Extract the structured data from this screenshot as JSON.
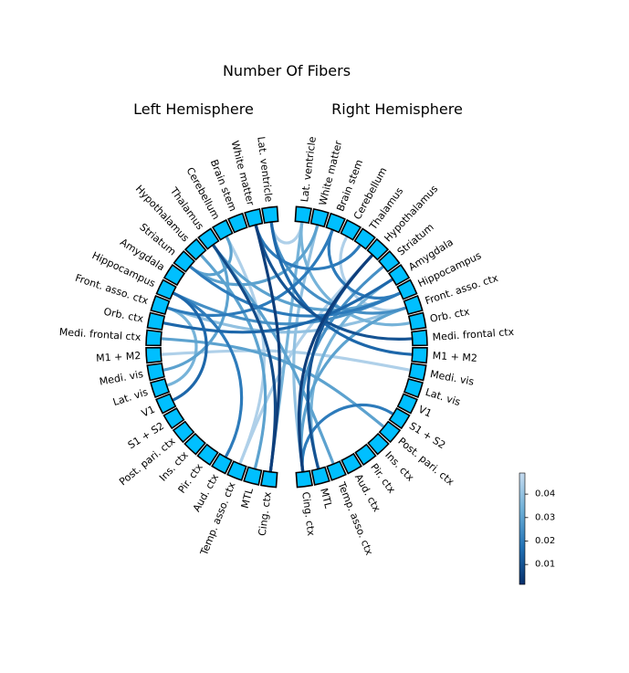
{
  "title": "Number Of Fibers",
  "left_title": "Left Hemisphere",
  "right_title": "Right Hemisphere",
  "node_color": "#00bfff",
  "left_nodes": [
    "Lat. ventricle",
    "White matter",
    "Brain stem",
    "Cerebellum",
    "Thalamus",
    "Hypothalamus",
    "Striatum",
    "Amygdala",
    "Hippocampus",
    "Front. asso. ctx",
    "Orb. ctx",
    "Medi. frontal ctx",
    "M1 + M2",
    "Medi. vis",
    "Lat. vis",
    "V1",
    "S1 + S2",
    "Post. pari. ctx",
    "Ins. ctx",
    "Pir. ctx",
    "Aud. ctx",
    "Temp. asso. ctx",
    "MTL",
    "Cing. ctx"
  ],
  "right_nodes": [
    "Lat. ventricle",
    "White matter",
    "Brain stem",
    "Cerebellum",
    "Thalamus",
    "Hypothalamus",
    "Striatum",
    "Amygdala",
    "Hippocampus",
    "Front. asso. ctx",
    "Orb. ctx",
    "Medi. frontal ctx",
    "M1 + M2",
    "Medi. vis",
    "Lat. vis",
    "V1",
    "S1 + S2",
    "Post. pari. ctx",
    "Ins. ctx",
    "Pir. ctx",
    "Aud. ctx",
    "Temp. asso. ctx",
    "MTL",
    "Cing. ctx"
  ],
  "colorbar": {
    "ticks": [
      "0.01",
      "0.02",
      "0.03",
      "0.04"
    ],
    "range": [
      0.0015,
      0.049
    ],
    "colors": [
      "#08306b",
      "#2171b5",
      "#6baed6",
      "#c6dbef"
    ]
  },
  "connections": [
    {
      "from": "L:Lat. ventricle",
      "to": "R:Front. asso. ctx",
      "value": 0.025
    },
    {
      "from": "L:Lat. ventricle",
      "to": "R:M1 + M2",
      "value": 0.015
    },
    {
      "from": "L:Lat. ventricle",
      "to": "R:Lat. ventricle",
      "value": 0.045
    },
    {
      "from": "L:White matter",
      "to": "R:Medi. frontal ctx",
      "value": 0.01
    },
    {
      "from": "L:White matter",
      "to": "L:Cing. ctx",
      "value": 0.005
    },
    {
      "from": "L:White matter",
      "to": "R:Thalamus",
      "value": 0.02
    },
    {
      "from": "L:Cerebellum",
      "to": "L:Temp. asso. ctx",
      "value": 0.045
    },
    {
      "from": "L:Cerebellum",
      "to": "L:Striatum",
      "value": 0.03
    },
    {
      "from": "L:Thalamus",
      "to": "L:Cing. ctx",
      "value": 0.008
    },
    {
      "from": "L:Thalamus",
      "to": "R:Temp. asso. ctx",
      "value": 0.03
    },
    {
      "from": "L:Thalamus",
      "to": "R:Hippocampus",
      "value": 0.03
    },
    {
      "from": "L:Hypothalamus",
      "to": "L:MTL",
      "value": 0.03
    },
    {
      "from": "L:Striatum",
      "to": "R:Hippocampus",
      "value": 0.02
    },
    {
      "from": "L:Striatum",
      "to": "R:White matter",
      "value": 0.03
    },
    {
      "from": "L:Hippocampus",
      "to": "R:Hippocampus",
      "value": 0.025
    },
    {
      "from": "L:Hippocampus",
      "to": "L:V1",
      "value": 0.015
    },
    {
      "from": "L:Hippocampus",
      "to": "L:Aud. ctx",
      "value": 0.02
    },
    {
      "from": "L:Front. asso. ctx",
      "to": "R:Front. asso. ctx",
      "value": 0.04
    },
    {
      "from": "L:Front. asso. ctx",
      "to": "R:Brain stem",
      "value": 0.02
    },
    {
      "from": "L:Orb. ctx",
      "to": "R:Amygdala",
      "value": 0.015
    },
    {
      "from": "L:M1 + M2",
      "to": "R:Medi. vis",
      "value": 0.045
    },
    {
      "from": "L:Medi. vis",
      "to": "L:Thalamus",
      "value": 0.03
    },
    {
      "from": "L:Medi. frontal ctx",
      "to": "R:Post. pari. ctx",
      "value": 0.03
    },
    {
      "from": "L:Lat. vis",
      "to": "L:Front. asso. ctx",
      "value": 0.035
    },
    {
      "from": "L:Temp. asso. ctx",
      "to": "R:Hypothalamus",
      "value": 0.045
    },
    {
      "from": "L:Cing. ctx",
      "to": "R:Lat. ventricle",
      "value": 0.035
    },
    {
      "from": "R:White matter",
      "to": "R:Cing. ctx",
      "value": 0.04
    },
    {
      "from": "R:Brain stem",
      "to": "R:Hippocampus",
      "value": 0.02
    },
    {
      "from": "R:Cerebellum",
      "to": "R:Front. asso. ctx",
      "value": 0.045
    },
    {
      "from": "R:Hypothalamus",
      "to": "R:MTL",
      "value": 0.01
    },
    {
      "from": "R:Hypothalamus",
      "to": "R:Cing. ctx",
      "value": 0.005
    },
    {
      "from": "R:Striatum",
      "to": "R:Cing. ctx",
      "value": 0.025
    },
    {
      "from": "R:Amygdala",
      "to": "R:MTL",
      "value": 0.035
    },
    {
      "from": "R:Front. asso. ctx",
      "to": "R:Cing. ctx",
      "value": 0.03
    },
    {
      "from": "R:S1 + S2",
      "to": "R:Cing. ctx",
      "value": 0.02
    },
    {
      "from": "R:Orb. ctx",
      "to": "R:Lat. ventricle",
      "value": 0.035
    }
  ]
}
